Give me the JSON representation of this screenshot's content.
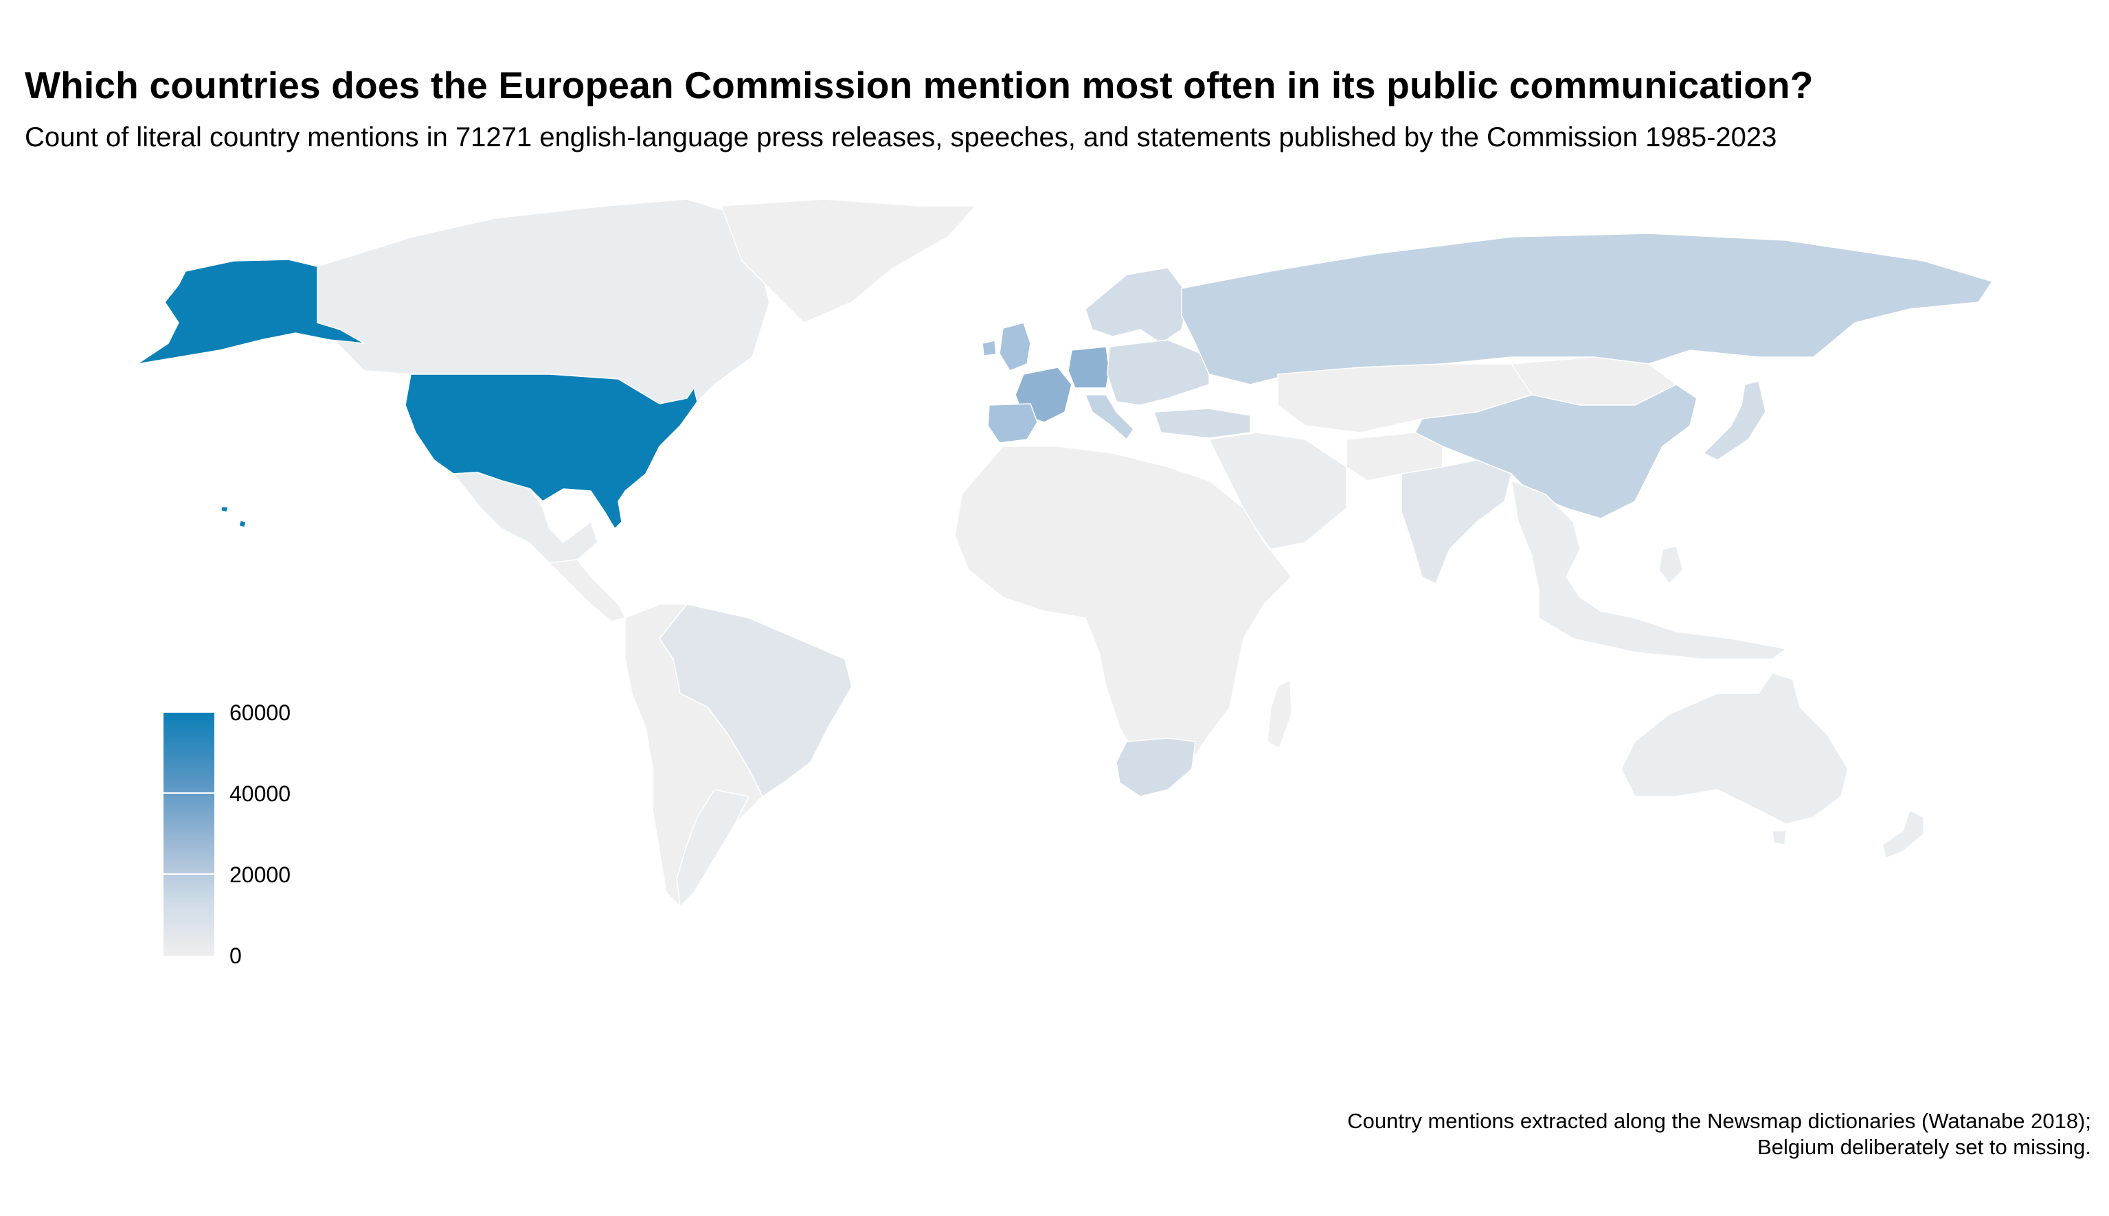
{
  "title": "Which countries does the European Commission mention most often in its public communication?",
  "subtitle": "Count of literal country mentions in 71271 english-language press releases, speeches, and statements published by the Commission 1985-2023",
  "caption": {
    "line1": "Country mentions extracted along the Newsmap dictionaries (Watanabe 2018);",
    "line2": "Belgium deliberately set to missing."
  },
  "legend": {
    "ticks": [
      "60000",
      "40000",
      "20000",
      "0"
    ],
    "scale_min": 0,
    "scale_max": 62000,
    "color_low": "#eeeeee",
    "color_high": "#0a7eb6"
  },
  "colors": {
    "very_high": "#0a80b6",
    "high": "#8fb2d2",
    "mid_high": "#a6c2dc",
    "mid": "#c2d3e3",
    "low_mid": "#d3dde8",
    "low": "#e1e6ec",
    "very_low": "#eaedf0",
    "minimal": "#efefef"
  },
  "map_data": {
    "type": "choropleth",
    "value_unit": "country mentions",
    "regions": [
      {
        "name": "United States",
        "level": "very_high"
      },
      {
        "name": "Alaska",
        "level": "very_high"
      },
      {
        "name": "Hawaii",
        "level": "very_high"
      },
      {
        "name": "Canada",
        "level": "very_low"
      },
      {
        "name": "Greenland",
        "level": "minimal"
      },
      {
        "name": "Mexico",
        "level": "very_low"
      },
      {
        "name": "Central America",
        "level": "minimal"
      },
      {
        "name": "Brazil",
        "level": "low"
      },
      {
        "name": "South America",
        "level": "minimal"
      },
      {
        "name": "Argentina",
        "level": "very_low"
      },
      {
        "name": "France",
        "level": "high"
      },
      {
        "name": "Germany",
        "level": "high"
      },
      {
        "name": "Spain",
        "level": "mid_high"
      },
      {
        "name": "United Kingdom",
        "level": "mid_high"
      },
      {
        "name": "Italy",
        "level": "mid"
      },
      {
        "name": "Scandinavia",
        "level": "low_mid"
      },
      {
        "name": "Eastern Europe",
        "level": "low_mid"
      },
      {
        "name": "Turkey",
        "level": "low_mid"
      },
      {
        "name": "Russia",
        "level": "mid"
      },
      {
        "name": "China",
        "level": "mid"
      },
      {
        "name": "Japan",
        "level": "low_mid"
      },
      {
        "name": "India",
        "level": "low"
      },
      {
        "name": "Mongolia",
        "level": "minimal"
      },
      {
        "name": "Africa",
        "level": "minimal"
      },
      {
        "name": "South Africa",
        "level": "low_mid"
      },
      {
        "name": "Middle East",
        "level": "very_low"
      },
      {
        "name": "Southeast Asia",
        "level": "very_low"
      },
      {
        "name": "Australia",
        "level": "very_low"
      },
      {
        "name": "New Zealand",
        "level": "very_low"
      }
    ]
  }
}
